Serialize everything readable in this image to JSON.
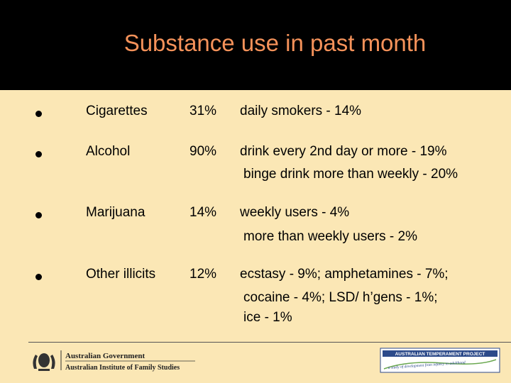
{
  "title": "Substance use in past month",
  "rows": [
    {
      "name": "Cigarettes",
      "pct": "31%",
      "detail": "daily smokers - 14%",
      "extra": []
    },
    {
      "name": "Alcohol",
      "pct": "90%",
      "detail": "drink every 2nd day or more - 19%",
      "extra": [
        "binge drink more than weekly - 20%"
      ]
    },
    {
      "name": "Marijuana",
      "pct": "14%",
      "detail": "weekly users - 4%",
      "extra": [
        "more than weekly users - 2%"
      ]
    },
    {
      "name": "Other illicits",
      "pct": "12%",
      "detail": "ecstasy - 9%; amphetamines - 7%;",
      "extra": [
        "cocaine - 4%; LSD/ h’gens - 1%;",
        "ice - 1%"
      ]
    }
  ],
  "footer": {
    "gov_line1": "Australian Government",
    "gov_line2": "Australian Institute of Family Studies",
    "atp_title": "AUSTRALIAN TEMPERAMENT PROJECT",
    "atp_tagline": "a study of development from infancy to adulthood"
  },
  "colors": {
    "title": "#f5925a",
    "background": "#fbe7b5",
    "header": "#000000"
  }
}
